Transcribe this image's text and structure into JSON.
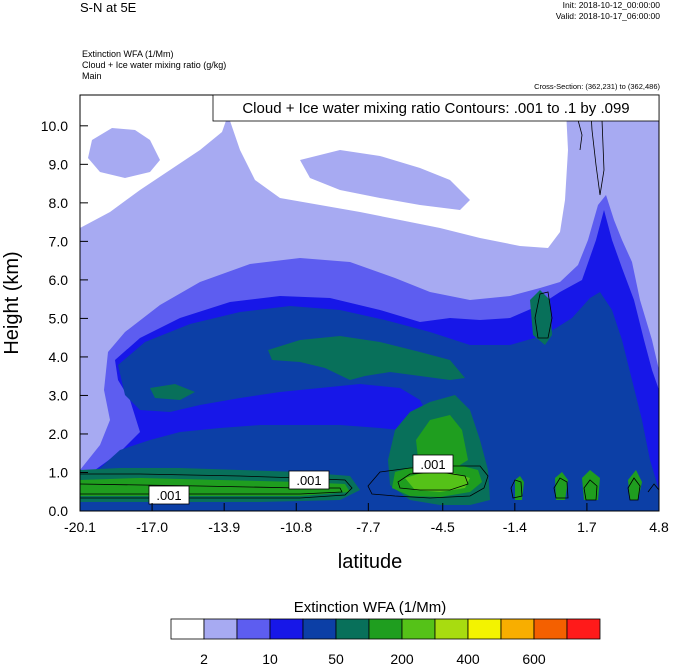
{
  "header": {
    "plot_title": "S-N at 5E",
    "init": "Init: 2018-10-12_00:00:00",
    "valid": "Valid: 2018-10-17_06:00:00",
    "field_line1": "Extinction WFA   (1/Mm)",
    "field_line2": "Cloud + Ice water mixing ratio   (g/kg)",
    "field_line3": "Main",
    "cross_section": "Cross-Section: (362,231) to (362,486)"
  },
  "colors": {
    "levels": [
      "#ffffff",
      "#a7aaf2",
      "#5d5df0",
      "#1717e8",
      "#0c3fa6",
      "#08705a",
      "#1f9e1f",
      "#55c218",
      "#a8dc10",
      "#f3f300",
      "#f8ae00",
      "#f46000",
      "#ff1a1a"
    ]
  },
  "chart_data": {
    "type": "heatmap",
    "title": "Cloud + Ice water mixing ratio Contours: .001 to .1 by .099",
    "xlabel": "latitude",
    "ylabel": "Height (km)",
    "xlim": [
      -20.1,
      4.8
    ],
    "ylim": [
      0.0,
      10.8
    ],
    "x_ticks": [
      "-20.1",
      "-17.0",
      "-13.9",
      "-10.8",
      "-7.7",
      "-4.5",
      "-1.4",
      "1.7",
      "4.8"
    ],
    "y_ticks": [
      "0.0",
      "1.0",
      "2.0",
      "3.0",
      "4.0",
      "5.0",
      "6.0",
      "7.0",
      "8.0",
      "9.0",
      "10.0"
    ],
    "contour_labels": [
      ".001",
      ".001",
      ".001"
    ],
    "colorbar": {
      "title": "Extinction WFA  (1/Mm)",
      "tick_labels": [
        "2",
        "10",
        "50",
        "200",
        "400",
        "600"
      ]
    }
  }
}
